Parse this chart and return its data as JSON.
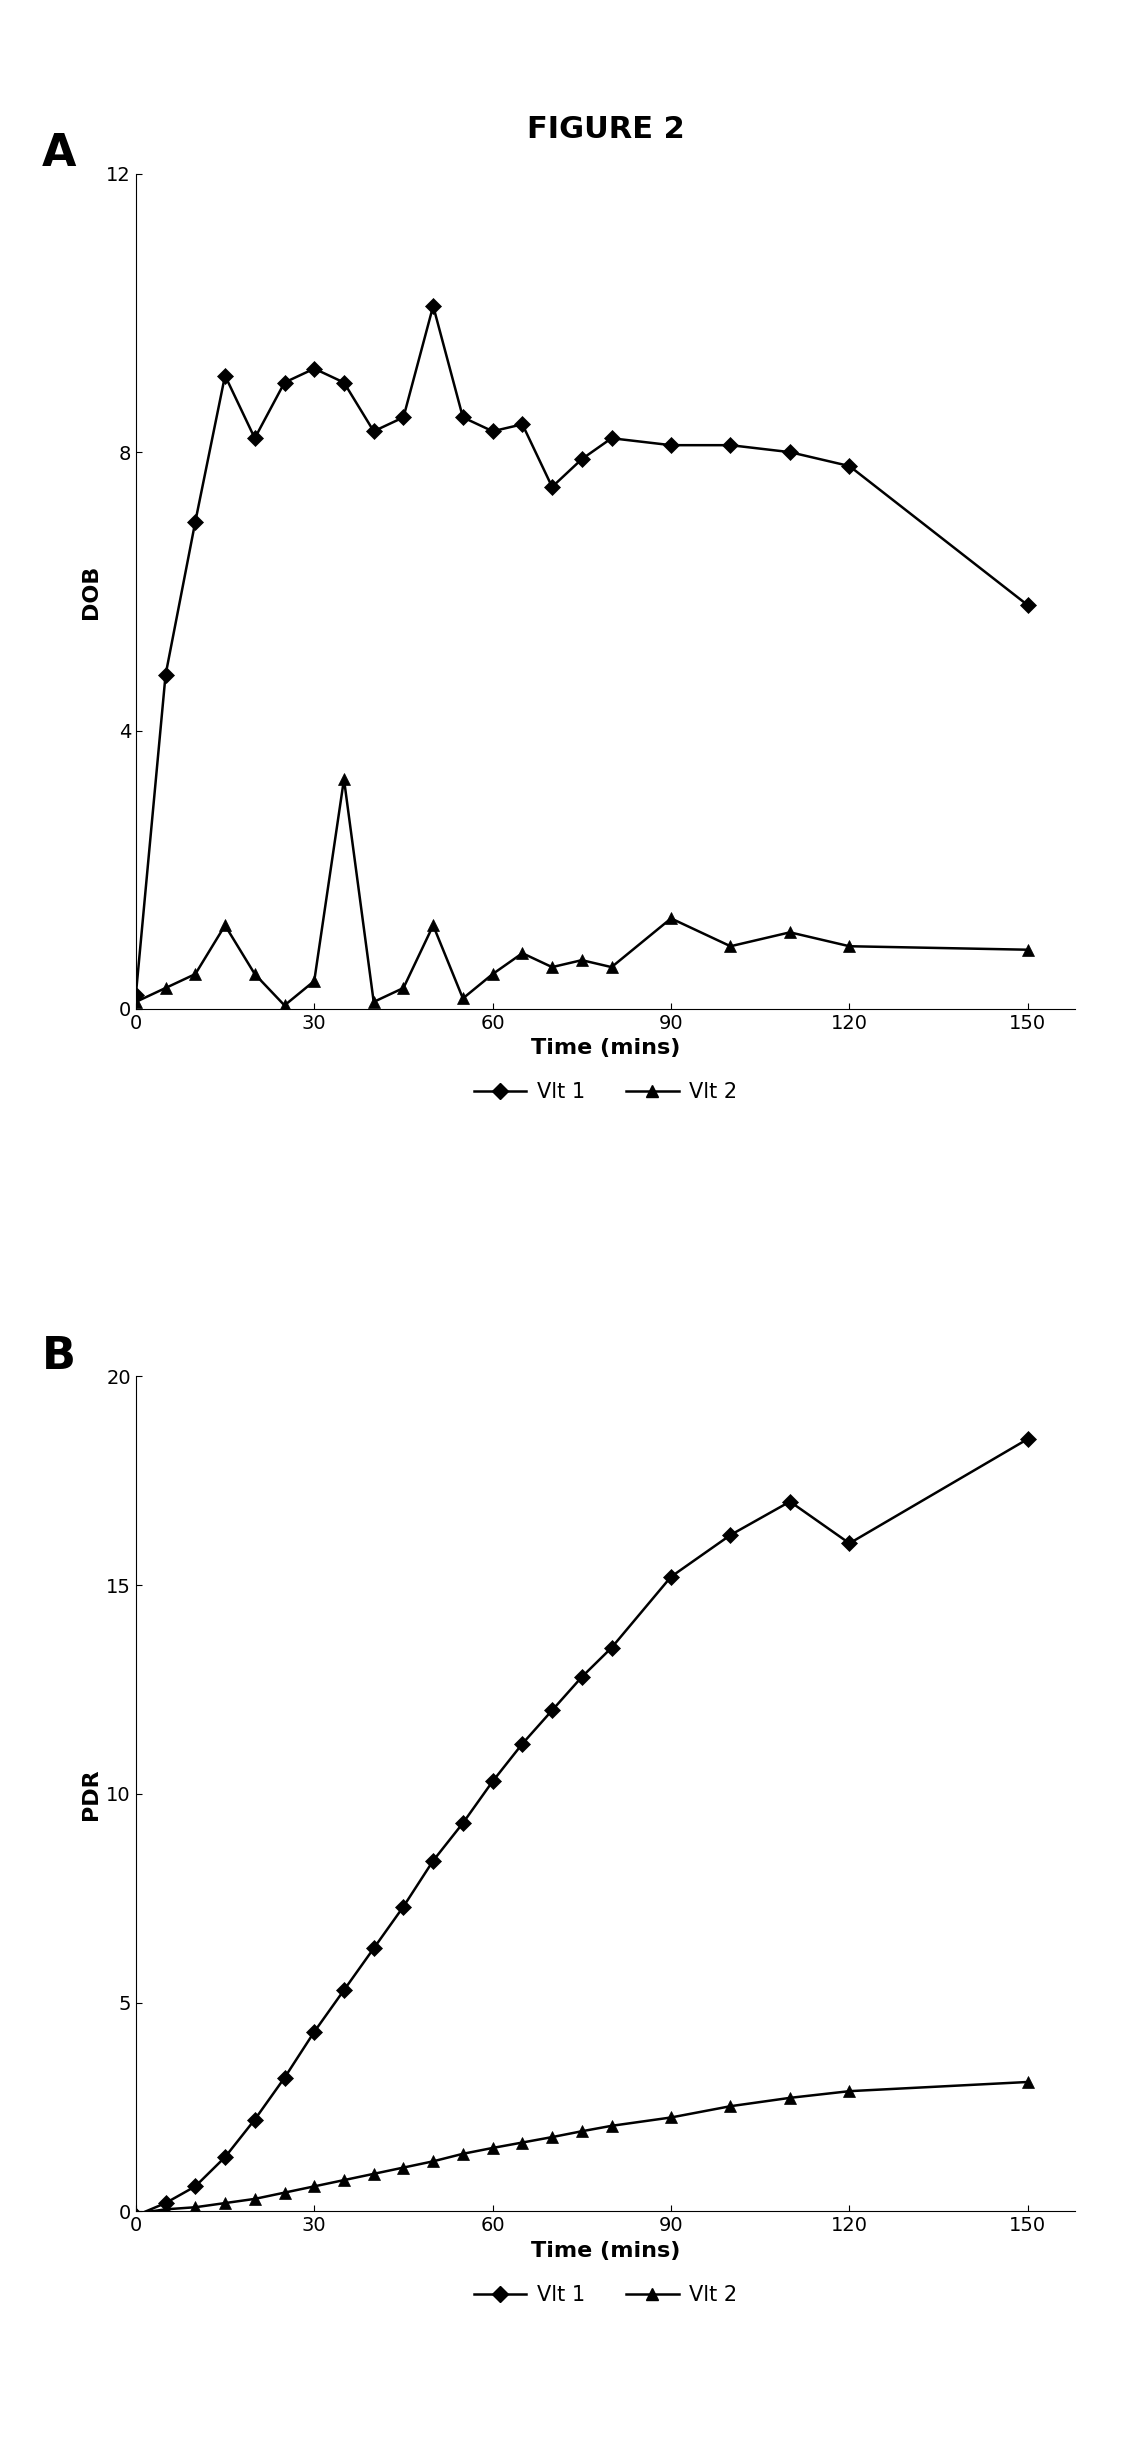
{
  "title": "FIGURE 2",
  "panel_A_label": "A",
  "panel_B_label": "B",
  "panel_A_ylabel": "DOB",
  "panel_B_ylabel": "PDR",
  "xlabel": "Time (mins)",
  "legend_label_1": "Vlt 1",
  "legend_label_2": "Vlt 2",
  "A_vlt1_x": [
    0,
    5,
    10,
    15,
    20,
    25,
    30,
    35,
    40,
    45,
    50,
    55,
    60,
    65,
    70,
    75,
    80,
    90,
    100,
    110,
    120,
    150
  ],
  "A_vlt1_y": [
    0.2,
    4.8,
    7.0,
    9.1,
    8.2,
    9.0,
    9.2,
    9.0,
    8.3,
    8.5,
    10.1,
    8.5,
    8.3,
    8.4,
    7.5,
    7.9,
    8.2,
    8.1,
    8.1,
    8.0,
    7.8,
    5.8
  ],
  "A_vlt2_x": [
    0,
    5,
    10,
    15,
    20,
    25,
    30,
    35,
    40,
    45,
    50,
    55,
    60,
    65,
    70,
    75,
    80,
    90,
    100,
    110,
    120,
    150
  ],
  "A_vlt2_y": [
    0.1,
    0.3,
    0.5,
    1.2,
    0.5,
    0.05,
    0.4,
    3.3,
    0.1,
    0.3,
    1.2,
    0.15,
    0.5,
    0.8,
    0.6,
    0.7,
    0.6,
    1.3,
    0.9,
    1.1,
    0.9,
    0.85
  ],
  "A_ylim": [
    0,
    12
  ],
  "A_yticks": [
    0,
    4,
    8,
    12
  ],
  "B_vlt1_x": [
    0,
    5,
    10,
    15,
    20,
    25,
    30,
    35,
    40,
    45,
    50,
    55,
    60,
    65,
    70,
    75,
    80,
    90,
    100,
    110,
    120,
    150
  ],
  "B_vlt1_y": [
    -0.1,
    0.2,
    0.6,
    1.3,
    2.2,
    3.2,
    4.3,
    5.3,
    6.3,
    7.3,
    8.4,
    9.3,
    10.3,
    11.2,
    12.0,
    12.8,
    13.5,
    15.2,
    16.2,
    17.0,
    16.0,
    18.5
  ],
  "B_vlt2_x": [
    0,
    5,
    10,
    15,
    20,
    25,
    30,
    35,
    40,
    45,
    50,
    55,
    60,
    65,
    70,
    75,
    80,
    90,
    100,
    110,
    120,
    150
  ],
  "B_vlt2_y": [
    -0.05,
    0.05,
    0.1,
    0.2,
    0.3,
    0.45,
    0.6,
    0.75,
    0.9,
    1.05,
    1.2,
    1.38,
    1.52,
    1.65,
    1.78,
    1.92,
    2.05,
    2.25,
    2.52,
    2.72,
    2.88,
    3.1
  ],
  "B_ylim": [
    0,
    20
  ],
  "B_yticks": [
    0,
    5,
    10,
    15,
    20
  ],
  "xticks": [
    0,
    30,
    60,
    90,
    120,
    150
  ],
  "line_color": "#000000",
  "bg_color": "#ffffff"
}
